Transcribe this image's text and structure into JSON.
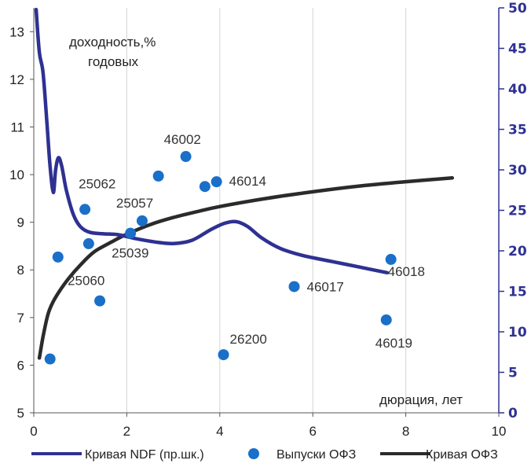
{
  "chart_data": {
    "type": "line+scatter",
    "annotations": {
      "y_axis_text_line1": "доходность,%",
      "y_axis_text_line2": "годовых",
      "x_axis_text": "дюрация, лет"
    },
    "x_axis": {
      "min": 0,
      "max": 10,
      "ticks": [
        "0",
        "2",
        "4",
        "6",
        "8",
        "10"
      ]
    },
    "y_left_axis": {
      "min": 5,
      "max": 13.5,
      "ticks": [
        "5",
        "6",
        "7",
        "8",
        "9",
        "10",
        "11",
        "12",
        "13"
      ]
    },
    "y_right_axis": {
      "min": 0,
      "max": 50,
      "ticks": [
        "0",
        "5",
        "10",
        "15",
        "20",
        "25",
        "30",
        "35",
        "40",
        "45",
        "50"
      ]
    },
    "grid": "vertical",
    "legend_position": "bottom",
    "series": [
      {
        "name": "Кривая NDF (пр.шк.)",
        "type": "line",
        "axis": "right",
        "color": "#2e3192",
        "points": [
          [
            0.05,
            49.8
          ],
          [
            0.12,
            44.5
          ],
          [
            0.2,
            42.0
          ],
          [
            0.28,
            36.0
          ],
          [
            0.35,
            30.5
          ],
          [
            0.42,
            27.2
          ],
          [
            0.47,
            30.0
          ],
          [
            0.53,
            31.5
          ],
          [
            0.6,
            30.5
          ],
          [
            0.7,
            27.5
          ],
          [
            0.85,
            24.5
          ],
          [
            1.0,
            23.0
          ],
          [
            1.2,
            22.3
          ],
          [
            1.5,
            22.1
          ],
          [
            1.8,
            22.0
          ],
          [
            2.2,
            21.5
          ],
          [
            2.6,
            21.1
          ],
          [
            3.0,
            20.9
          ],
          [
            3.4,
            21.3
          ],
          [
            3.8,
            22.6
          ],
          [
            4.1,
            23.4
          ],
          [
            4.35,
            23.6
          ],
          [
            4.6,
            23.0
          ],
          [
            4.9,
            21.6
          ],
          [
            5.3,
            20.3
          ],
          [
            5.8,
            19.4
          ],
          [
            6.4,
            18.7
          ],
          [
            7.0,
            18.0
          ],
          [
            7.6,
            17.3
          ]
        ]
      },
      {
        "name": "Выпуски ОФЗ",
        "type": "scatter",
        "axis": "left",
        "color": "#1a6fc9",
        "points": [
          {
            "x": 0.35,
            "y": 6.13,
            "label": ""
          },
          {
            "x": 0.52,
            "y": 8.27,
            "label": ""
          },
          {
            "x": 1.1,
            "y": 9.27,
            "label": "25062"
          },
          {
            "x": 1.18,
            "y": 8.55,
            "label": ""
          },
          {
            "x": 1.42,
            "y": 7.35,
            "label": "25060"
          },
          {
            "x": 2.08,
            "y": 8.77,
            "label": "25039"
          },
          {
            "x": 2.33,
            "y": 9.03,
            "label": "25057"
          },
          {
            "x": 2.68,
            "y": 9.97,
            "label": ""
          },
          {
            "x": 3.27,
            "y": 10.38,
            "label": "46002"
          },
          {
            "x": 3.68,
            "y": 9.75,
            "label": ""
          },
          {
            "x": 3.93,
            "y": 9.85,
            "label": "46014"
          },
          {
            "x": 4.08,
            "y": 6.22,
            "label": "26200"
          },
          {
            "x": 5.6,
            "y": 7.65,
            "label": "46017"
          },
          {
            "x": 7.58,
            "y": 6.95,
            "label": "46019"
          },
          {
            "x": 7.68,
            "y": 8.22,
            "label": "46018"
          }
        ]
      },
      {
        "name": "Кривая ОФЗ",
        "type": "line",
        "axis": "left",
        "color": "#2b2b2b",
        "points": [
          [
            0.12,
            6.15
          ],
          [
            0.2,
            6.6
          ],
          [
            0.3,
            7.05
          ],
          [
            0.4,
            7.3
          ],
          [
            0.55,
            7.55
          ],
          [
            0.75,
            7.82
          ],
          [
            1.0,
            8.1
          ],
          [
            1.3,
            8.38
          ],
          [
            1.7,
            8.6
          ],
          [
            2.0,
            8.75
          ],
          [
            2.5,
            8.95
          ],
          [
            3.0,
            9.1
          ],
          [
            3.5,
            9.22
          ],
          [
            4.0,
            9.33
          ],
          [
            5.0,
            9.5
          ],
          [
            6.0,
            9.64
          ],
          [
            7.0,
            9.76
          ],
          [
            8.0,
            9.85
          ],
          [
            9.0,
            9.93
          ]
        ]
      }
    ]
  }
}
